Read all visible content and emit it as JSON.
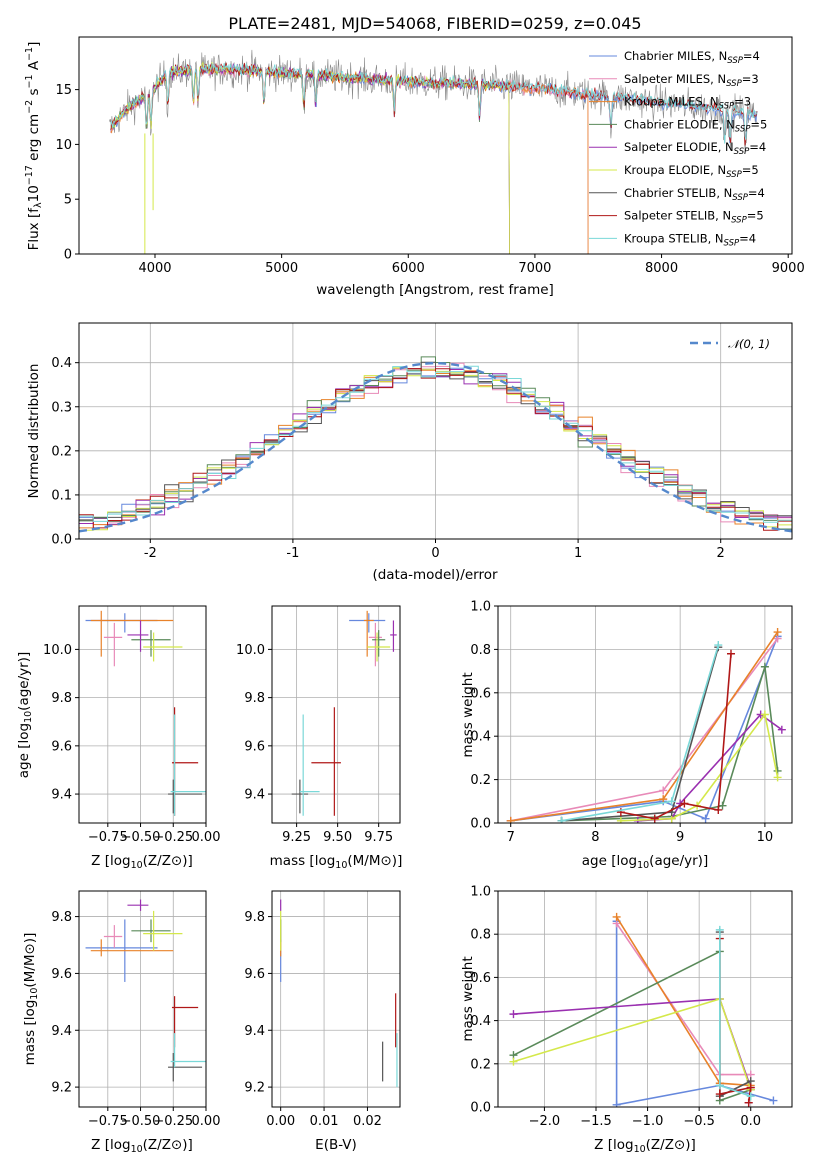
{
  "title": "PLATE=2481, MJD=54068, FIBERID=0259, z=0.045",
  "colors": {
    "Chabrier MILES": "#6688dd",
    "Salpeter MILES": "#e88ab8",
    "Kroupa MILES": "#e8822a",
    "Chabrier ELODIE": "#5a8a5a",
    "Salpeter ELODIE": "#9a30b0",
    "Kroupa ELODIE": "#d4e84a",
    "Chabrier STELIB": "#555555",
    "Salpeter STELIB": "#b01818",
    "Kroupa STELIB": "#7ad8d8"
  },
  "chart_data": [
    {
      "type": "line",
      "title": "PLATE=2481, MJD=54068, FIBERID=0259, z=0.045",
      "xlabel": "wavelength [Angstrom, rest frame]",
      "ylabel": "Flux [f_λ 10^-17 erg cm^-2 s^-1 A^-1]",
      "xlim": [
        3400,
        9030
      ],
      "ylim": [
        0,
        19.8
      ],
      "xticks": [
        4000,
        5000,
        6000,
        7000,
        8000,
        9000
      ],
      "yticks": [
        0,
        5,
        10,
        15
      ],
      "legend_position": "top-right",
      "legend": [
        {
          "name": "Chabrier MILES",
          "nssp": 4
        },
        {
          "name": "Salpeter MILES",
          "nssp": 3
        },
        {
          "name": "Kroupa MILES",
          "nssp": 3
        },
        {
          "name": "Chabrier ELODIE",
          "nssp": 5
        },
        {
          "name": "Salpeter ELODIE",
          "nssp": 4
        },
        {
          "name": "Kroupa ELODIE",
          "nssp": 5
        },
        {
          "name": "Chabrier STELIB",
          "nssp": 4
        },
        {
          "name": "Salpeter STELIB",
          "nssp": 5
        },
        {
          "name": "Kroupa STELIB",
          "nssp": 4
        }
      ],
      "continuum": {
        "x": [
          3650,
          3800,
          3950,
          4100,
          4300,
          4500,
          4700,
          5000,
          5300,
          5600,
          5900,
          6200,
          6500,
          6800,
          7100,
          7400,
          7700,
          8000,
          8300,
          8600,
          8750
        ],
        "y": [
          11.5,
          13.5,
          14.5,
          16.5,
          16.8,
          16.8,
          16.8,
          16.5,
          16.3,
          16.0,
          15.8,
          15.6,
          15.5,
          15.3,
          15.0,
          14.6,
          14.2,
          13.8,
          13.4,
          13.0,
          12.7
        ]
      }
    },
    {
      "type": "bar",
      "xlabel": "(data-model)/error",
      "ylabel": "Normed distribution",
      "xlim": [
        -2.5,
        2.5
      ],
      "ylim": [
        0,
        0.49
      ],
      "xticks": [
        -2,
        -1,
        0,
        1,
        2
      ],
      "yticks": [
        0.0,
        0.1,
        0.2,
        0.3,
        0.4
      ],
      "grid": true,
      "legend_position": "top-right",
      "reference": {
        "name": "N(0,1)",
        "mean": 0,
        "sigma": 1
      }
    },
    {
      "type": "scatter",
      "xlabel": "Z [log10(Z/Z_sun)]",
      "ylabel": "age [log10(age/yr)]",
      "xlim": [
        -0.97,
        0.0
      ],
      "ylim": [
        9.28,
        10.18
      ],
      "xticks": [
        -0.75,
        -0.5,
        -0.25,
        0.0
      ],
      "yticks": [
        9.4,
        9.6,
        9.8,
        10.0
      ],
      "grid": true,
      "points": [
        {
          "model": "Chabrier MILES",
          "x": -0.62,
          "y": 10.12,
          "xerr": [
            0.3,
            0.25
          ],
          "yerr": [
            0.05,
            0.03
          ]
        },
        {
          "model": "Salpeter MILES",
          "x": -0.7,
          "y": 10.05,
          "xerr": [
            0.08,
            0.06
          ],
          "yerr": [
            0.12,
            0.06
          ]
        },
        {
          "model": "Kroupa MILES",
          "x": -0.8,
          "y": 10.12,
          "xerr": [
            0.08,
            0.55
          ],
          "yerr": [
            0.15,
            0.04
          ]
        },
        {
          "model": "Chabrier ELODIE",
          "x": -0.42,
          "y": 10.04,
          "xerr": [
            0.15,
            0.15
          ],
          "yerr": [
            0.07,
            0.04
          ]
        },
        {
          "model": "Salpeter ELODIE",
          "x": -0.5,
          "y": 10.06,
          "xerr": [
            0.1,
            0.06
          ],
          "yerr": [
            0.07,
            0.06
          ]
        },
        {
          "model": "Kroupa ELODIE",
          "x": -0.4,
          "y": 10.01,
          "xerr": [
            0.08,
            0.22
          ],
          "yerr": [
            0.06,
            0.06
          ]
        },
        {
          "model": "Chabrier STELIB",
          "x": -0.25,
          "y": 9.4,
          "xerr": [
            0.04,
            0.22
          ],
          "yerr": [
            0.08,
            0.06
          ]
        },
        {
          "model": "Salpeter STELIB",
          "x": -0.24,
          "y": 9.53,
          "xerr": [
            0.02,
            0.18
          ],
          "yerr": [
            0.22,
            0.23
          ]
        },
        {
          "model": "Kroupa STELIB",
          "x": -0.24,
          "y": 9.41,
          "xerr": [
            0.03,
            0.25
          ],
          "yerr": [
            0.1,
            0.32
          ]
        }
      ]
    },
    {
      "type": "scatter",
      "xlabel": "mass [log10(M/M_sun)]",
      "ylabel": "",
      "xlim": [
        9.1,
        9.88
      ],
      "ylim": [
        9.28,
        10.18
      ],
      "xticks": [
        9.25,
        9.5,
        9.75
      ],
      "yticks": [
        9.4,
        9.6,
        9.8,
        10.0
      ],
      "grid": true,
      "points": [
        {
          "model": "Chabrier MILES",
          "x": 9.69,
          "y": 10.12,
          "xerr": [
            0.12,
            0.1
          ],
          "yerr": [
            0.05,
            0.03
          ]
        },
        {
          "model": "Salpeter MILES",
          "x": 9.73,
          "y": 10.05,
          "xerr": [
            0.04,
            0.04
          ],
          "yerr": [
            0.12,
            0.06
          ]
        },
        {
          "model": "Kroupa MILES",
          "x": 9.68,
          "y": 10.12,
          "xerr": [
            0.02,
            0.04
          ],
          "yerr": [
            0.15,
            0.04
          ]
        },
        {
          "model": "Chabrier ELODIE",
          "x": 9.75,
          "y": 10.04,
          "xerr": [
            0.04,
            0.04
          ],
          "yerr": [
            0.07,
            0.04
          ]
        },
        {
          "model": "Salpeter ELODIE",
          "x": 9.84,
          "y": 10.06,
          "xerr": [
            0.02,
            0.02
          ],
          "yerr": [
            0.07,
            0.06
          ]
        },
        {
          "model": "Kroupa ELODIE",
          "x": 9.74,
          "y": 10.01,
          "xerr": [
            0.06,
            0.08
          ],
          "yerr": [
            0.06,
            0.06
          ]
        },
        {
          "model": "Chabrier STELIB",
          "x": 9.27,
          "y": 9.4,
          "xerr": [
            0.05,
            0.05
          ],
          "yerr": [
            0.08,
            0.06
          ]
        },
        {
          "model": "Salpeter STELIB",
          "x": 9.48,
          "y": 9.53,
          "xerr": [
            0.14,
            0.04
          ],
          "yerr": [
            0.22,
            0.23
          ]
        },
        {
          "model": "Kroupa STELIB",
          "x": 9.29,
          "y": 9.41,
          "xerr": [
            0.02,
            0.1
          ],
          "yerr": [
            0.1,
            0.32
          ]
        }
      ]
    },
    {
      "type": "line",
      "xlabel": "age [log10(age/yr)]",
      "ylabel": "mass weight",
      "xlim": [
        6.85,
        10.32
      ],
      "ylim": [
        0,
        1.0
      ],
      "xticks": [
        7,
        8,
        9,
        10
      ],
      "yticks": [
        0.0,
        0.2,
        0.4,
        0.6,
        0.8,
        1.0
      ],
      "grid": true,
      "series": [
        {
          "model": "Chabrier MILES",
          "x": [
            7.0,
            8.8,
            9.3,
            10.15
          ],
          "y": [
            0.01,
            0.1,
            0.02,
            0.86
          ]
        },
        {
          "model": "Salpeter MILES",
          "x": [
            7.0,
            8.8,
            10.15
          ],
          "y": [
            0.01,
            0.15,
            0.85
          ]
        },
        {
          "model": "Kroupa MILES",
          "x": [
            7.0,
            8.8,
            10.15
          ],
          "y": [
            0.01,
            0.11,
            0.88
          ]
        },
        {
          "model": "Chabrier ELODIE",
          "x": [
            7.6,
            8.9,
            9.5,
            10.0,
            10.15
          ],
          "y": [
            0.01,
            0.03,
            0.08,
            0.72,
            0.24
          ]
        },
        {
          "model": "Salpeter ELODIE",
          "x": [
            8.5,
            8.9,
            9.0,
            9.95,
            10.2
          ],
          "y": [
            0.01,
            0.02,
            0.09,
            0.5,
            0.43
          ]
        },
        {
          "model": "Kroupa ELODIE",
          "x": [
            8.3,
            8.9,
            9.2,
            10.0,
            10.15
          ],
          "y": [
            0.01,
            0.02,
            0.08,
            0.5,
            0.21
          ]
        },
        {
          "model": "Chabrier STELIB",
          "x": [
            7.6,
            8.9,
            9.45
          ],
          "y": [
            0.01,
            0.05,
            0.81
          ]
        },
        {
          "model": "Salpeter STELIB",
          "x": [
            8.3,
            8.7,
            9.05,
            9.45,
            9.6
          ],
          "y": [
            0.05,
            0.02,
            0.09,
            0.06,
            0.78
          ]
        },
        {
          "model": "Kroupa STELIB",
          "x": [
            7.6,
            8.9,
            9.45
          ],
          "y": [
            0.01,
            0.1,
            0.82
          ]
        }
      ]
    },
    {
      "type": "scatter",
      "xlabel": "Z [log10(Z/Z_sun)]",
      "ylabel": "mass [log10(M/M_sun)]",
      "xlim": [
        -0.97,
        0.0
      ],
      "ylim": [
        9.13,
        9.89
      ],
      "xticks": [
        -0.75,
        -0.5,
        -0.25,
        0.0
      ],
      "yticks": [
        9.2,
        9.4,
        9.6,
        9.8
      ],
      "grid": true,
      "points": [
        {
          "model": "Chabrier MILES",
          "x": -0.62,
          "y": 9.69,
          "xerr": [
            0.3,
            0.25
          ],
          "yerr": [
            0.12,
            0.1
          ]
        },
        {
          "model": "Salpeter MILES",
          "x": -0.7,
          "y": 9.73,
          "xerr": [
            0.08,
            0.06
          ],
          "yerr": [
            0.04,
            0.04
          ]
        },
        {
          "model": "Kroupa MILES",
          "x": -0.8,
          "y": 9.68,
          "xerr": [
            0.08,
            0.55
          ],
          "yerr": [
            0.02,
            0.04
          ]
        },
        {
          "model": "Chabrier ELODIE",
          "x": -0.42,
          "y": 9.75,
          "xerr": [
            0.15,
            0.15
          ],
          "yerr": [
            0.04,
            0.04
          ]
        },
        {
          "model": "Salpeter ELODIE",
          "x": -0.5,
          "y": 9.84,
          "xerr": [
            0.1,
            0.06
          ],
          "yerr": [
            0.02,
            0.02
          ]
        },
        {
          "model": "Kroupa ELODIE",
          "x": -0.4,
          "y": 9.74,
          "xerr": [
            0.08,
            0.22
          ],
          "yerr": [
            0.06,
            0.08
          ]
        },
        {
          "model": "Chabrier STELIB",
          "x": -0.25,
          "y": 9.27,
          "xerr": [
            0.04,
            0.22
          ],
          "yerr": [
            0.05,
            0.05
          ]
        },
        {
          "model": "Salpeter STELIB",
          "x": -0.24,
          "y": 9.48,
          "xerr": [
            0.02,
            0.18
          ],
          "yerr": [
            0.14,
            0.04
          ]
        },
        {
          "model": "Kroupa STELIB",
          "x": -0.24,
          "y": 9.29,
          "xerr": [
            0.03,
            0.25
          ],
          "yerr": [
            0.02,
            0.1
          ]
        }
      ]
    },
    {
      "type": "scatter",
      "xlabel": "E(B-V)",
      "ylabel": "",
      "xlim": [
        -0.002,
        0.0275
      ],
      "ylim": [
        9.13,
        9.89
      ],
      "xticks": [
        0.0,
        0.01,
        0.02
      ],
      "yticks": [
        9.2,
        9.4,
        9.6,
        9.8
      ],
      "grid": true,
      "points": [
        {
          "model": "Chabrier MILES",
          "x": 0.0,
          "y": 9.69,
          "yerr": [
            0.12,
            0.1
          ]
        },
        {
          "model": "Salpeter MILES",
          "x": 0.0,
          "y": 9.73,
          "yerr": [
            0.04,
            0.04
          ]
        },
        {
          "model": "Kroupa MILES",
          "x": 0.0,
          "y": 9.68,
          "yerr": [
            0.02,
            0.04
          ]
        },
        {
          "model": "Chabrier ELODIE",
          "x": 0.0,
          "y": 9.75,
          "yerr": [
            0.04,
            0.04
          ]
        },
        {
          "model": "Salpeter ELODIE",
          "x": 0.0,
          "y": 9.84,
          "yerr": [
            0.02,
            0.02
          ]
        },
        {
          "model": "Kroupa ELODIE",
          "x": 0.0,
          "y": 9.74,
          "yerr": [
            0.06,
            0.08
          ]
        },
        {
          "model": "Chabrier STELIB",
          "x": 0.0235,
          "y": 9.27,
          "yerr": [
            0.05,
            0.09
          ]
        },
        {
          "model": "Salpeter STELIB",
          "x": 0.0265,
          "y": 9.48,
          "yerr": [
            0.14,
            0.05
          ]
        },
        {
          "model": "Kroupa STELIB",
          "x": 0.0268,
          "y": 9.29,
          "yerr": [
            0.09,
            0.1
          ]
        }
      ]
    },
    {
      "type": "line",
      "xlabel": "Z [log10(Z/Z_sun)]",
      "ylabel": "mass weight",
      "xlim": [
        -2.45,
        0.4
      ],
      "ylim": [
        0,
        1.0
      ],
      "xticks": [
        -2.0,
        -1.5,
        -1.0,
        -0.5,
        0.0
      ],
      "yticks": [
        0.0,
        0.2,
        0.4,
        0.6,
        0.8,
        1.0
      ],
      "grid": true,
      "series": [
        {
          "model": "Chabrier MILES",
          "x": [
            -1.3,
            -1.3,
            -0.3,
            0.22
          ],
          "y": [
            0.86,
            0.01,
            0.1,
            0.03
          ]
        },
        {
          "model": "Salpeter MILES",
          "x": [
            -1.3,
            -0.3,
            0.0
          ],
          "y": [
            0.85,
            0.15,
            0.15
          ]
        },
        {
          "model": "Kroupa MILES",
          "x": [
            -1.3,
            -0.3,
            0.0
          ],
          "y": [
            0.88,
            0.11,
            0.1
          ]
        },
        {
          "model": "Chabrier ELODIE",
          "x": [
            -2.3,
            -0.3,
            -0.3,
            0.0
          ],
          "y": [
            0.24,
            0.72,
            0.03,
            0.08
          ]
        },
        {
          "model": "Salpeter ELODIE",
          "x": [
            -2.3,
            -0.3,
            0.0,
            -0.02
          ],
          "y": [
            0.43,
            0.5,
            0.09,
            0.02
          ]
        },
        {
          "model": "Kroupa ELODIE",
          "x": [
            -2.3,
            -0.3,
            0.0
          ],
          "y": [
            0.21,
            0.5,
            0.08
          ]
        },
        {
          "model": "Chabrier STELIB",
          "x": [
            -0.3,
            -0.3,
            0.0
          ],
          "y": [
            0.81,
            0.05,
            0.12
          ]
        },
        {
          "model": "Salpeter STELIB",
          "x": [
            -0.3,
            -0.3,
            0.0,
            -0.02
          ],
          "y": [
            0.78,
            0.06,
            0.09,
            0.02
          ]
        },
        {
          "model": "Kroupa STELIB",
          "x": [
            -0.3,
            -0.3,
            0.0
          ],
          "y": [
            0.82,
            0.1,
            0.05
          ]
        }
      ]
    }
  ]
}
